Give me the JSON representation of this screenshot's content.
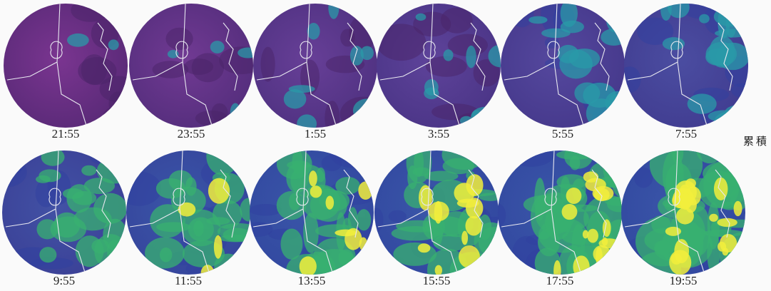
{
  "panels": [
    {
      "time": "21:55"
    },
    {
      "time": "23:55"
    },
    {
      "time": "1:55"
    },
    {
      "time": "3:55"
    },
    {
      "time": "5:55"
    },
    {
      "time": "7:55"
    },
    {
      "time": "9:55"
    },
    {
      "time": "11:55"
    },
    {
      "time": "13:55"
    },
    {
      "time": "15:55"
    },
    {
      "time": "17:55"
    },
    {
      "time": "19:55"
    }
  ],
  "side_label": "累積"
}
